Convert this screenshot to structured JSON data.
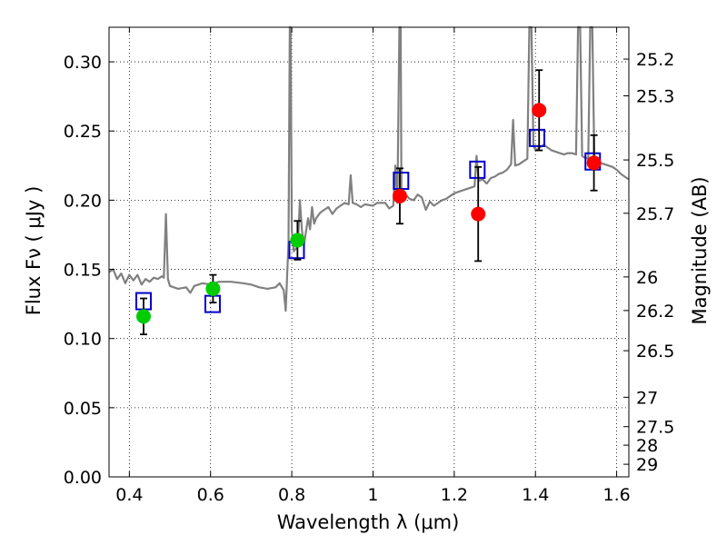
{
  "chart_data": {
    "type": "scatter",
    "title": "",
    "xlabel": "Wavelength  λ (μm)",
    "ylabel": "Flux  Fν  ( μJy )",
    "ylabel_right": "Magnitude (AB)",
    "xlim": [
      0.35,
      1.63
    ],
    "ylim": [
      0.0,
      0.325
    ],
    "grid": true,
    "x_ticks": [
      0.4,
      0.6,
      0.8,
      1.0,
      1.2,
      1.4,
      1.6
    ],
    "x_tick_labels": [
      "0.4",
      "0.6",
      "0.8",
      "1",
      "1.2",
      "1.4",
      "1.6"
    ],
    "y_ticks": [
      0.0,
      0.05,
      0.1,
      0.15,
      0.2,
      0.25,
      0.3
    ],
    "y_tick_labels": [
      "0.00",
      "0.05",
      "0.10",
      "0.15",
      "0.20",
      "0.25",
      "0.30"
    ],
    "mag_ticks": [
      25.2,
      25.3,
      25.5,
      25.7,
      26,
      26.2,
      26.5,
      27,
      27.5,
      28,
      29
    ],
    "mag_tick_labels": [
      "25.2",
      "25.3",
      "25.5",
      "25.7",
      "26",
      "26.2",
      "26.5",
      "27",
      "27.5",
      "28",
      "29"
    ],
    "series": [
      {
        "marker": "circle",
        "color": "#00cc00",
        "points": [
          {
            "x": 0.435,
            "y": 0.116,
            "err": 0.013
          },
          {
            "x": 0.606,
            "y": 0.136,
            "err": 0.01
          },
          {
            "x": 0.814,
            "y": 0.171,
            "err": 0.014
          }
        ]
      },
      {
        "marker": "circle",
        "color": "#ff0000",
        "points": [
          {
            "x": 1.066,
            "y": 0.203,
            "err": 0.02
          },
          {
            "x": 1.259,
            "y": 0.19,
            "err": 0.034
          },
          {
            "x": 1.409,
            "y": 0.265,
            "err": 0.029
          },
          {
            "x": 1.544,
            "y": 0.227,
            "err": 0.02
          }
        ]
      },
      {
        "marker": "open-square",
        "color": "#0000cc",
        "points": [
          {
            "x": 0.435,
            "y": 0.127
          },
          {
            "x": 0.605,
            "y": 0.125
          },
          {
            "x": 0.812,
            "y": 0.164
          },
          {
            "x": 1.069,
            "y": 0.214
          },
          {
            "x": 1.257,
            "y": 0.222
          },
          {
            "x": 1.404,
            "y": 0.245
          },
          {
            "x": 1.541,
            "y": 0.228
          }
        ]
      },
      {
        "marker": "line",
        "color": "#808080",
        "points": [
          [
            0.35,
            0.148
          ],
          [
            0.36,
            0.15
          ],
          [
            0.37,
            0.143
          ],
          [
            0.38,
            0.147
          ],
          [
            0.39,
            0.14
          ],
          [
            0.4,
            0.146
          ],
          [
            0.41,
            0.142
          ],
          [
            0.42,
            0.146
          ],
          [
            0.43,
            0.139
          ],
          [
            0.44,
            0.143
          ],
          [
            0.45,
            0.141
          ],
          [
            0.46,
            0.144
          ],
          [
            0.47,
            0.143
          ],
          [
            0.48,
            0.145
          ],
          [
            0.485,
            0.144
          ],
          [
            0.49,
            0.19
          ],
          [
            0.495,
            0.143
          ],
          [
            0.5,
            0.138
          ],
          [
            0.52,
            0.136
          ],
          [
            0.54,
            0.137
          ],
          [
            0.55,
            0.133
          ],
          [
            0.56,
            0.138
          ],
          [
            0.58,
            0.14
          ],
          [
            0.6,
            0.139
          ],
          [
            0.62,
            0.141
          ],
          [
            0.65,
            0.141
          ],
          [
            0.68,
            0.14
          ],
          [
            0.7,
            0.139
          ],
          [
            0.72,
            0.137
          ],
          [
            0.74,
            0.136
          ],
          [
            0.76,
            0.137
          ],
          [
            0.77,
            0.14
          ],
          [
            0.78,
            0.135
          ],
          [
            0.785,
            0.12
          ],
          [
            0.792,
            0.17
          ],
          [
            0.795,
            0.325
          ],
          [
            0.797,
            0.325
          ],
          [
            0.8,
            0.178
          ],
          [
            0.805,
            0.163
          ],
          [
            0.81,
            0.165
          ],
          [
            0.815,
            0.167
          ],
          [
            0.82,
            0.2
          ],
          [
            0.825,
            0.178
          ],
          [
            0.83,
            0.168
          ],
          [
            0.84,
            0.187
          ],
          [
            0.845,
            0.179
          ],
          [
            0.85,
            0.195
          ],
          [
            0.855,
            0.183
          ],
          [
            0.86,
            0.187
          ],
          [
            0.87,
            0.191
          ],
          [
            0.88,
            0.193
          ],
          [
            0.89,
            0.195
          ],
          [
            0.9,
            0.19
          ],
          [
            0.91,
            0.194
          ],
          [
            0.92,
            0.196
          ],
          [
            0.93,
            0.198
          ],
          [
            0.94,
            0.197
          ],
          [
            0.945,
            0.218
          ],
          [
            0.95,
            0.198
          ],
          [
            0.96,
            0.197
          ],
          [
            0.97,
            0.195
          ],
          [
            0.98,
            0.197
          ],
          [
            1.0,
            0.196
          ],
          [
            1.01,
            0.198
          ],
          [
            1.03,
            0.198
          ],
          [
            1.04,
            0.194
          ],
          [
            1.05,
            0.196
          ],
          [
            1.055,
            0.225
          ],
          [
            1.06,
            0.198
          ],
          [
            1.065,
            0.325
          ],
          [
            1.068,
            0.325
          ],
          [
            1.07,
            0.2
          ],
          [
            1.08,
            0.204
          ],
          [
            1.09,
            0.201
          ],
          [
            1.1,
            0.2
          ],
          [
            1.11,
            0.204
          ],
          [
            1.12,
            0.202
          ],
          [
            1.13,
            0.193
          ],
          [
            1.14,
            0.199
          ],
          [
            1.15,
            0.196
          ],
          [
            1.16,
            0.198
          ],
          [
            1.17,
            0.2
          ],
          [
            1.18,
            0.201
          ],
          [
            1.19,
            0.203
          ],
          [
            1.2,
            0.205
          ],
          [
            1.22,
            0.207
          ],
          [
            1.24,
            0.209
          ],
          [
            1.25,
            0.21
          ],
          [
            1.255,
            0.232
          ],
          [
            1.26,
            0.214
          ],
          [
            1.27,
            0.215
          ],
          [
            1.28,
            0.212
          ],
          [
            1.29,
            0.216
          ],
          [
            1.3,
            0.217
          ],
          [
            1.31,
            0.219
          ],
          [
            1.32,
            0.22
          ],
          [
            1.33,
            0.222
          ],
          [
            1.34,
            0.226
          ],
          [
            1.345,
            0.258
          ],
          [
            1.35,
            0.225
          ],
          [
            1.36,
            0.226
          ],
          [
            1.37,
            0.228
          ],
          [
            1.38,
            0.23
          ],
          [
            1.385,
            0.325
          ],
          [
            1.39,
            0.325
          ],
          [
            1.395,
            0.24
          ],
          [
            1.4,
            0.236
          ],
          [
            1.41,
            0.238
          ],
          [
            1.42,
            0.24
          ],
          [
            1.43,
            0.238
          ],
          [
            1.44,
            0.236
          ],
          [
            1.45,
            0.235
          ],
          [
            1.46,
            0.234
          ],
          [
            1.47,
            0.233
          ],
          [
            1.48,
            0.234
          ],
          [
            1.49,
            0.234
          ],
          [
            1.5,
            0.233
          ],
          [
            1.505,
            0.325
          ],
          [
            1.51,
            0.325
          ],
          [
            1.515,
            0.232
          ],
          [
            1.52,
            0.231
          ],
          [
            1.53,
            0.23
          ],
          [
            1.535,
            0.325
          ],
          [
            1.54,
            0.325
          ],
          [
            1.545,
            0.23
          ],
          [
            1.55,
            0.228
          ],
          [
            1.56,
            0.227
          ],
          [
            1.57,
            0.226
          ],
          [
            1.58,
            0.225
          ],
          [
            1.59,
            0.224
          ],
          [
            1.6,
            0.222
          ],
          [
            1.61,
            0.219
          ],
          [
            1.62,
            0.217
          ],
          [
            1.63,
            0.215
          ]
        ]
      }
    ]
  }
}
